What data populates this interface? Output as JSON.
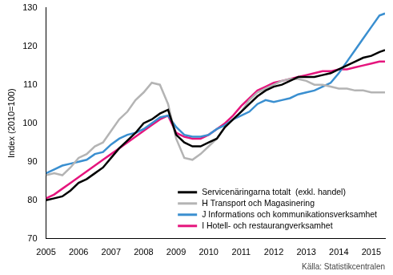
{
  "chart_data": {
    "type": "line",
    "y_label": "Index (2010=100)",
    "annotations": [
      "Källa: Statistikcentralen"
    ],
    "x": [
      2005.0,
      2005.25,
      2005.5,
      2005.75,
      2006.0,
      2006.25,
      2006.5,
      2006.75,
      2007.0,
      2007.25,
      2007.5,
      2007.75,
      2008.0,
      2008.25,
      2008.5,
      2008.75,
      2009.0,
      2009.25,
      2009.5,
      2009.75,
      2010.0,
      2010.25,
      2010.5,
      2010.75,
      2011.0,
      2011.25,
      2011.5,
      2011.75,
      2012.0,
      2012.25,
      2012.5,
      2012.75,
      2013.0,
      2013.25,
      2013.5,
      2013.75,
      2014.0,
      2014.25,
      2014.5,
      2014.75,
      2015.0,
      2015.25,
      2015.42
    ],
    "series": [
      {
        "name": "Servicenäringarna totalt  (exkl. handel)",
        "color": "#000000",
        "values": [
          80,
          80.5,
          81,
          82.5,
          84.5,
          85.5,
          87,
          88.5,
          91,
          93.5,
          95.5,
          97.5,
          100,
          101,
          102.5,
          103.5,
          97,
          95,
          94,
          94,
          95,
          96,
          99,
          101,
          103,
          105,
          107,
          108.5,
          109.5,
          110,
          111,
          112,
          112,
          112,
          112.5,
          113,
          114,
          115,
          116,
          117,
          117.5,
          118.5,
          119
        ]
      },
      {
        "name": "H Transport och Magasinering",
        "color": "#b4b4b4",
        "values": [
          86.5,
          87,
          86.5,
          88.5,
          91,
          92,
          94,
          95,
          98,
          101,
          103,
          106,
          108,
          110.5,
          110,
          105,
          96,
          91,
          90.5,
          92,
          94,
          96,
          99,
          101,
          103,
          106,
          108,
          109,
          110,
          111,
          111.5,
          111.5,
          111,
          110,
          110,
          109.5,
          109,
          109,
          108.5,
          108.5,
          108,
          108,
          108
        ]
      },
      {
        "name": "J Informations och kommunikationsverksamhet",
        "color": "#3a8fd0",
        "values": [
          87,
          88,
          89,
          89.5,
          90,
          90.5,
          92,
          92.5,
          94.5,
          96,
          97,
          97.5,
          98.5,
          100,
          101.5,
          102,
          99,
          97,
          96.5,
          96.5,
          97,
          98.5,
          99.5,
          101,
          102,
          103,
          105,
          106,
          105.5,
          106,
          106.5,
          107.5,
          108,
          108.5,
          109.5,
          110.5,
          113,
          116,
          119,
          122,
          125,
          128,
          128.5
        ]
      },
      {
        "name": "I Hotell- och restaurangverksamhet",
        "color": "#e5157d",
        "values": [
          80.5,
          81.5,
          83,
          84.5,
          86,
          87.5,
          89,
          90.5,
          92,
          93.5,
          95,
          96.5,
          98,
          99.5,
          101,
          102,
          97.5,
          96.5,
          96,
          96,
          97,
          98.5,
          100,
          102,
          104.5,
          106.5,
          108.5,
          109.5,
          110.5,
          111,
          111.5,
          112,
          112.5,
          113,
          113.5,
          113.5,
          114,
          114,
          114.5,
          115,
          115.5,
          116,
          116
        ]
      }
    ],
    "xlim": [
      2005,
      2015.42
    ],
    "xticks": [
      2005,
      2006,
      2007,
      2008,
      2009,
      2010,
      2011,
      2012,
      2013,
      2014,
      2015
    ],
    "ylim": [
      70,
      130
    ],
    "yticks": [
      70,
      80,
      90,
      100,
      110,
      120,
      130
    ],
    "grid": false,
    "legend": "lower right"
  }
}
